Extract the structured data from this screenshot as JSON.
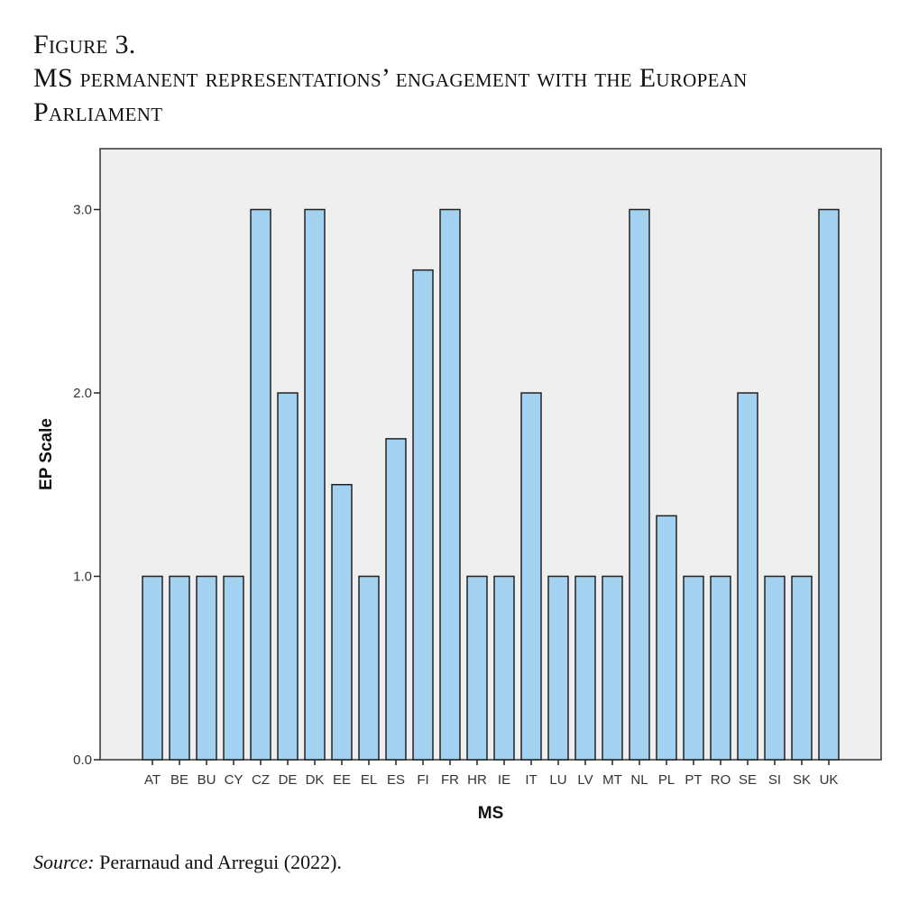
{
  "caption": {
    "figure_label": "Figure 3.",
    "title_line1": "MS permanent representations’ engagement with the European",
    "title_line2": "Parliament"
  },
  "source": {
    "label": "Source:",
    "text": " Perarnaud and Arregui (2022)."
  },
  "colors": {
    "bar_fill": "#a3d2f0",
    "bar_stroke": "#222222",
    "plot_bg": "#efefef"
  },
  "chart_data": {
    "type": "bar",
    "title": "MS permanent representations’ engagement with the European Parliament",
    "xlabel": "MS",
    "ylabel": "EP Scale",
    "ylim": [
      0,
      3.3
    ],
    "yticks": [
      0.0,
      1.0,
      2.0,
      3.0
    ],
    "ytick_labels": [
      "0.0",
      "1.0",
      "2.0",
      "3.0"
    ],
    "grid": false,
    "categories": [
      "AT",
      "BE",
      "BU",
      "CY",
      "CZ",
      "DE",
      "DK",
      "EE",
      "EL",
      "ES",
      "FI",
      "FR",
      "HR",
      "IE",
      "IT",
      "LU",
      "LV",
      "MT",
      "NL",
      "PL",
      "PT",
      "RO",
      "SE",
      "SI",
      "SK",
      "UK"
    ],
    "values": [
      1,
      1,
      1,
      1,
      3,
      2,
      3,
      1.5,
      1,
      1.75,
      2.67,
      3,
      1,
      1,
      2,
      1,
      1,
      1,
      3,
      1.33,
      1,
      1,
      2,
      1,
      1,
      3
    ]
  }
}
